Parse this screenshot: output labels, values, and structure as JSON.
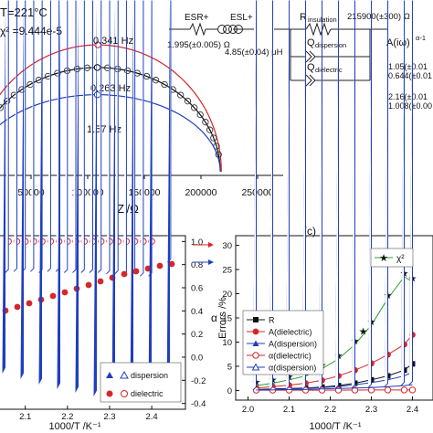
{
  "nyquist": {
    "temperature": "T=221°C",
    "chi2": "χ² =9.444e-5",
    "x_ticks": [
      "50000",
      "100000",
      "150000",
      "200000",
      "250000"
    ],
    "x_label": "Z'/Ω",
    "arc_labels": [
      {
        "text": "0.341 Hz",
        "color": "#d62728"
      },
      {
        "text": "0.263 Hz",
        "color": "#111111"
      },
      {
        "text": "1.57 Hz",
        "color": "#1f3fbf"
      }
    ]
  },
  "circuit": {
    "esr_label": "ESR+",
    "esr_value": "1.995(±0.005) Ω",
    "esl_label": "ESL+",
    "esl_value": "4.85(±0.04) μH",
    "rins_label": "R",
    "rins_sub": "insulation",
    "rins_value": "215900(±300) Ω",
    "qdisp_label": "Q",
    "qdisp_sub": "dispersion",
    "qdiel_label": "Q",
    "qdiel_sub": "dielectric",
    "a_label": "A(iω)",
    "a_sup": "α-1",
    "disp_values": [
      "1.05(±0.01",
      "0.644(±0.01"
    ],
    "diel_values": [
      "2.16(±0.01",
      "1.008(±0.00"
    ]
  },
  "panel_c_label": "(c)",
  "left_plot": {
    "alpha_label": "α",
    "right_ticks": [
      "1.0",
      "0.8",
      "0.6",
      "0.4",
      "0.2",
      "0.0",
      "-0.2",
      "-0.4"
    ],
    "x_ticks": [
      "2.1",
      "2.2",
      "2.3",
      "2.4"
    ],
    "x_label": "1000/T /K⁻¹",
    "legend": {
      "dispersion": "dispersion",
      "dielectric": "dielectric"
    }
  },
  "right_plot": {
    "y_label": "Errors /%",
    "y_ticks": [
      "30",
      "25",
      "20",
      "15",
      "10",
      "5",
      "0"
    ],
    "x_ticks": [
      "2.0",
      "2.1",
      "2.2",
      "2.3",
      "2.4"
    ],
    "x_label": "1000/T /K⁻¹",
    "chi_legend": "χ²",
    "legend": [
      "R",
      "A(dielectric)",
      "A(dispersion)",
      "α(dielectric)",
      "α(dispersion)"
    ]
  },
  "colors": {
    "red": "#d62728",
    "blue": "#1f3fbf",
    "green": "#2ca02c",
    "black": "#111111"
  },
  "chart_data": [
    {
      "type": "scatter",
      "title": "",
      "xlabel": "Z'/Ω",
      "ylabel": "",
      "xlim": [
        0,
        250000
      ],
      "series": [
        {
          "name": "0.341 Hz",
          "color": "#d62728",
          "kind": "line",
          "arc_center": 109000,
          "arc_radius": 109000,
          "arc_height": 112000
        },
        {
          "name": "0.263 Hz",
          "color": "#111111",
          "kind": "line+circles",
          "arc_center": 108500,
          "arc_radius": 108500,
          "arc_height": 92000
        },
        {
          "name": "1.57 Hz",
          "color": "#1f3fbf",
          "kind": "line",
          "arc_center": 108500,
          "arc_radius": 108500,
          "arc_height": 68000
        }
      ]
    },
    {
      "type": "scatter",
      "xlabel": "1000/T /K⁻¹",
      "ylabel": "α",
      "xlim": [
        2.04,
        2.48
      ],
      "ylim": [
        -0.45,
        1.05
      ],
      "series": [
        {
          "name": "dielectric",
          "marker": "open-circle",
          "color": "#d62728",
          "x": [
            2.06,
            2.08,
            2.1,
            2.12,
            2.14,
            2.16,
            2.18,
            2.2,
            2.22,
            2.24,
            2.26,
            2.28,
            2.3,
            2.32,
            2.34,
            2.36,
            2.38,
            2.4
          ],
          "y": [
            1.0,
            1.0,
            1.0,
            1.0,
            1.0,
            1.0,
            1.0,
            1.0,
            1.0,
            1.0,
            1.0,
            1.0,
            1.0,
            1.0,
            1.0,
            1.0,
            1.0,
            1.0
          ]
        },
        {
          "name": "dispersion",
          "marker": "open-triangle",
          "color": "#1f3fbf",
          "x": [
            2.06,
            2.08,
            2.1,
            2.12,
            2.14,
            2.16,
            2.18,
            2.2,
            2.22,
            2.24,
            2.26,
            2.28,
            2.3,
            2.32,
            2.34,
            2.36,
            2.38,
            2.4,
            2.445
          ],
          "y": [
            0.73,
            0.74,
            0.74,
            0.74,
            0.73,
            0.74,
            0.74,
            0.73,
            0.73,
            0.73,
            0.73,
            0.73,
            0.72,
            0.72,
            0.71,
            0.71,
            0.7,
            0.7,
            0.82
          ]
        }
      ]
    },
    {
      "type": "line",
      "xlabel": "1000/T /K⁻¹",
      "ylabel": "Errors /%",
      "xlim": [
        1.97,
        2.45
      ],
      "ylim": [
        -2,
        32
      ],
      "series": [
        {
          "name": "χ²",
          "marker": "star",
          "color": "#2ca02c",
          "x": [
            2.02,
            2.06,
            2.1,
            2.14,
            2.18,
            2.22,
            2.26,
            2.28,
            2.3,
            2.34,
            2.38,
            2.4
          ],
          "y": [
            1,
            1.5,
            2.2,
            3,
            4.5,
            6.5,
            9.5,
            11.5,
            13.5,
            19,
            23.5,
            22.5
          ]
        },
        {
          "name": "R",
          "marker": "filled-square",
          "color": "#111111",
          "x": [
            2.02,
            2.06,
            2.1,
            2.14,
            2.18,
            2.22,
            2.26,
            2.3,
            2.34,
            2.38,
            2.4
          ],
          "y": [
            0.2,
            0.3,
            0.4,
            0.5,
            0.7,
            1.0,
            1.5,
            2.2,
            3.0,
            4.2,
            5.5
          ]
        },
        {
          "name": "A(dielectric)",
          "marker": "filled-circle",
          "color": "#d62728",
          "x": [
            2.02,
            2.06,
            2.1,
            2.14,
            2.18,
            2.22,
            2.26,
            2.3,
            2.34,
            2.38,
            2.4
          ],
          "y": [
            0.5,
            0.8,
            1.1,
            1.5,
            2.1,
            3.0,
            4.2,
            5.6,
            7.4,
            9.5,
            11.5
          ]
        },
        {
          "name": "A(dispersion)",
          "marker": "filled-triangle",
          "color": "#1f3fbf",
          "x": [
            2.02,
            2.06,
            2.1,
            2.14,
            2.18,
            2.22,
            2.26,
            2.3,
            2.34,
            2.38,
            2.4
          ],
          "y": [
            0.1,
            0.2,
            0.3,
            0.4,
            0.6,
            0.8,
            1.2,
            1.6,
            2.2,
            3.0,
            3.8
          ]
        },
        {
          "name": "α(dielectric)",
          "marker": "open-circle",
          "color": "#d62728",
          "x": [
            2.02,
            2.06,
            2.1,
            2.14,
            2.18,
            2.22,
            2.26,
            2.3,
            2.34,
            2.38,
            2.4
          ],
          "y": [
            0.05,
            0.05,
            0.05,
            0.06,
            0.06,
            0.07,
            0.08,
            0.09,
            0.1,
            0.1,
            0.1
          ]
        },
        {
          "name": "α(dispersion)",
          "marker": "open-triangle",
          "color": "#1f3fbf",
          "x": [
            2.02,
            2.06,
            2.1,
            2.14,
            2.18,
            2.22,
            2.26,
            2.3,
            2.34,
            2.38,
            2.4
          ],
          "y": [
            0.1,
            0.1,
            0.2,
            0.2,
            0.3,
            0.4,
            0.5,
            0.6,
            0.8,
            1.0,
            1.2
          ]
        }
      ]
    }
  ]
}
